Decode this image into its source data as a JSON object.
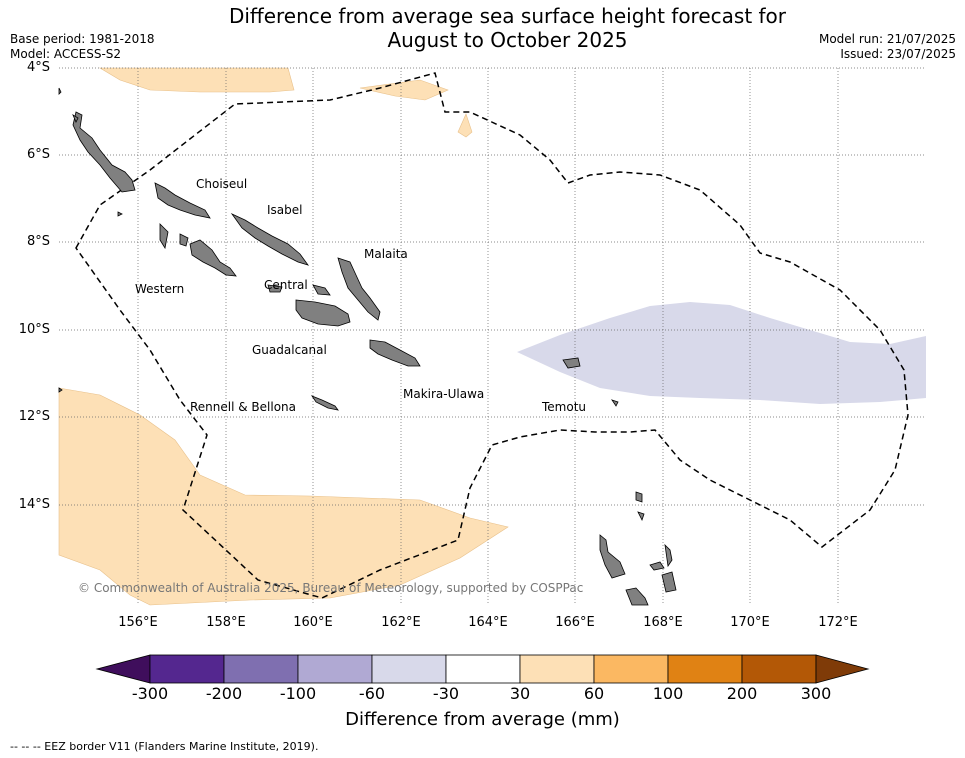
{
  "header": {
    "title_line1": "Difference from average sea surface height forecast for",
    "title_line2": "August to October 2025",
    "base_period": "Base period: 1981-2018",
    "model": "Model: ACCESS-S2",
    "model_run": "Model run: 21/07/2025",
    "issued": "Issued: 23/07/2025"
  },
  "map": {
    "lat_labels": [
      "4°S",
      "6°S",
      "8°S",
      "10°S",
      "12°S",
      "14°S"
    ],
    "lon_labels": [
      "156°E",
      "158°E",
      "160°E",
      "162°E",
      "164°E",
      "166°E",
      "168°E",
      "170°E",
      "172°E"
    ],
    "province_labels": [
      "Choiseul",
      "Isabel",
      "Malaita",
      "Western",
      "Central",
      "Guadalcanal",
      "Makira-Ulawa",
      "Rennell & Bellona",
      "Temotu"
    ],
    "copyright": "© Commonwealth of Australia 2025, Bureau of Meteorology, supported by COSPPac",
    "colors": {
      "land": "#808080",
      "positive_30_60": "#fde0b6",
      "negative_30_60": "#d8d9ea",
      "eez_line": "#000000"
    }
  },
  "legend": {
    "ticks": [
      "-300",
      "-200",
      "-100",
      "-60",
      "-30",
      "30",
      "60",
      "100",
      "200",
      "300"
    ],
    "colors": [
      "#3f0e5c",
      "#54278f",
      "#7f6fb0",
      "#b0a9d3",
      "#d8d9ea",
      "#ffffff",
      "#fde0b6",
      "#fbb862",
      "#e08214",
      "#b35806",
      "#7f3b08"
    ],
    "title": "Difference from average (mm)"
  },
  "footer": {
    "eez_note": "--  --  -- EEZ border V11 (Flanders Marine Institute, 2019)."
  }
}
